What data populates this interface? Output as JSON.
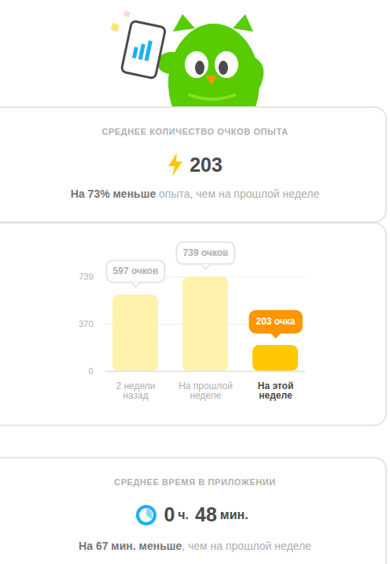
{
  "header": {
    "title": "СРЕДНЕЕ КОЛИЧЕСТВО ОЧКОВ ОПЫТА",
    "value": 203,
    "change_emphasis": "На 73% меньше",
    "change_rest": " опыта, чем на прошлой неделе"
  },
  "chart_data": {
    "type": "bar",
    "categories": [
      "2 недели назад",
      "На прошлой неделе",
      "На этой неделе"
    ],
    "values": [
      597,
      739,
      203
    ],
    "value_labels": [
      "597 очков",
      "739 очков",
      "203 очка"
    ],
    "data_labels": true,
    "colors": [
      "#fff2ad",
      "#fff2ad",
      "#ffc800"
    ],
    "ylim": [
      0,
      739
    ],
    "yticks": [
      0,
      370,
      739
    ],
    "grid": true
  },
  "footer": {
    "title": "СРЕДНЕЕ ВРЕМЯ В ПРИЛОЖЕНИИ",
    "hours": 0,
    "hours_unit": "ч.",
    "minutes": 48,
    "minutes_unit": "мин.",
    "change_emphasis": "На 67 мин. меньше",
    "change_rest": ", чем на прошлой неделе"
  }
}
